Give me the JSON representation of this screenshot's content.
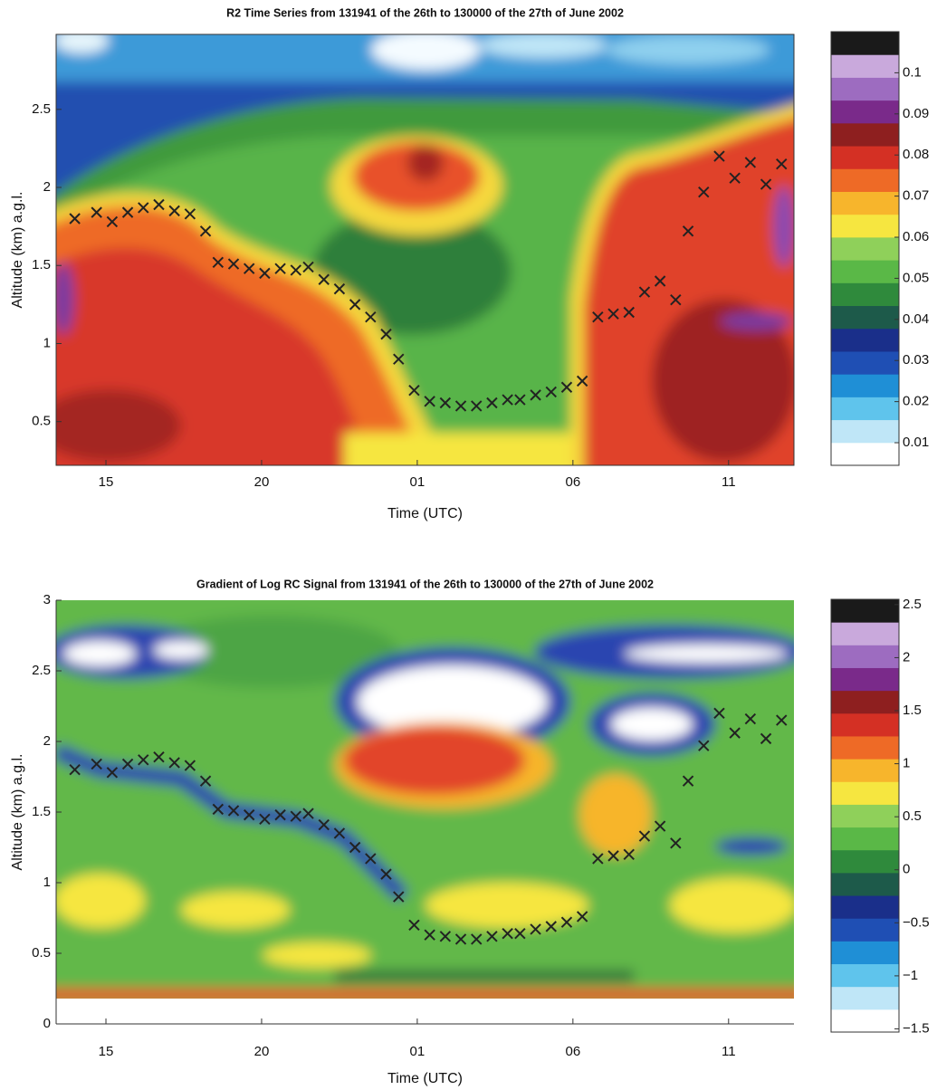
{
  "chart_data": [
    {
      "type": "heatmap",
      "title": "R2 Time Series from 131941 of the 26th to 130000 of the 27th of June 2002",
      "x_label": "Time (UTC)",
      "y_label": "Altitude (km) a.g.l.",
      "xlim": [
        13.4,
        37.1
      ],
      "xticks": [
        15,
        20,
        {
          "value": 25,
          "label": "01"
        },
        {
          "value": 30,
          "label": "06"
        },
        {
          "value": 35,
          "label": "11"
        }
      ],
      "ylim": [
        0.22,
        2.98
      ],
      "yticks": [
        0.5,
        1,
        1.5,
        2,
        2.5
      ],
      "colorbar": {
        "lim": [
          0.0045,
          0.11
        ],
        "ticks": [
          0.01,
          0.02,
          0.03,
          0.04,
          0.05,
          0.06,
          0.07,
          0.08,
          0.09,
          0.1
        ],
        "colors": [
          "#ffffff",
          "#bfe6f7",
          "#5fc4ec",
          "#1f8fd6",
          "#1f4fb4",
          "#1a2f8a",
          "#1d5a4a",
          "#2f8a3c",
          "#5ab847",
          "#8fd05a",
          "#f6e640",
          "#f7b52c",
          "#ee6a26",
          "#d43024",
          "#8e1f1f",
          "#7a2a8a",
          "#9d6cc0",
          "#c9a9dc",
          "#1a1a1a"
        ]
      },
      "markers": {
        "color": "#222222",
        "x": [
          14.0,
          14.7,
          15.2,
          15.7,
          16.2,
          16.7,
          17.2,
          17.7,
          18.2,
          18.6,
          19.1,
          19.6,
          20.1,
          20.6,
          21.1,
          21.5,
          22.0,
          22.5,
          23.0,
          23.5,
          24.0,
          24.4,
          24.9,
          25.4,
          25.9,
          26.4,
          26.9,
          27.4,
          27.9,
          28.3,
          28.8,
          29.3,
          29.8,
          30.3,
          30.8,
          31.3,
          31.8,
          32.3,
          32.8,
          33.3,
          33.7,
          34.2,
          34.7,
          35.2,
          35.7,
          36.2,
          36.7
        ],
        "values": [
          1.8,
          1.84,
          1.78,
          1.84,
          1.87,
          1.89,
          1.85,
          1.83,
          1.72,
          1.52,
          1.51,
          1.48,
          1.45,
          1.48,
          1.47,
          1.49,
          1.41,
          1.35,
          1.25,
          1.17,
          1.06,
          0.9,
          0.7,
          0.63,
          0.62,
          0.6,
          0.6,
          0.62,
          0.64,
          0.64,
          0.67,
          0.69,
          0.72,
          0.76,
          1.17,
          1.19,
          1.2,
          1.33,
          1.4,
          1.28,
          1.72,
          1.97,
          2.2,
          2.06,
          2.16,
          2.02,
          2.15
        ]
      }
    },
    {
      "type": "heatmap",
      "title": "Gradient of Log RC Signal from 131941 of the 26th to 130000 of the 27th of June 2002",
      "x_label": "Time (UTC)",
      "y_label": "Altitude (km) a.g.l.",
      "xlim": [
        13.4,
        37.1
      ],
      "xticks": [
        15,
        20,
        {
          "value": 25,
          "label": "01"
        },
        {
          "value": 30,
          "label": "06"
        },
        {
          "value": 35,
          "label": "11"
        }
      ],
      "ylim": [
        0,
        3
      ],
      "yticks": [
        0,
        0.5,
        1,
        1.5,
        2,
        2.5,
        3
      ],
      "colorbar": {
        "lim": [
          -1.53,
          2.55
        ],
        "ticks": [
          {
            "value": -1.5,
            "label": "−1.5"
          },
          {
            "value": -1,
            "label": "−1"
          },
          {
            "value": -0.5,
            "label": "−0.5"
          },
          0,
          0.5,
          1,
          1.5,
          2,
          2.5
        ],
        "colors": [
          "#ffffff",
          "#bfe6f7",
          "#5fc4ec",
          "#1f8fd6",
          "#1f4fb4",
          "#1a2f8a",
          "#1d5a4a",
          "#2f8a3c",
          "#5ab847",
          "#8fd05a",
          "#f6e640",
          "#f7b52c",
          "#ee6a26",
          "#d43024",
          "#8e1f1f",
          "#7a2a8a",
          "#9d6cc0",
          "#c9a9dc",
          "#1a1a1a"
        ]
      },
      "markers": {
        "color": "#222222",
        "x": [
          14.0,
          14.7,
          15.2,
          15.7,
          16.2,
          16.7,
          17.2,
          17.7,
          18.2,
          18.6,
          19.1,
          19.6,
          20.1,
          20.6,
          21.1,
          21.5,
          22.0,
          22.5,
          23.0,
          23.5,
          24.0,
          24.4,
          24.9,
          25.4,
          25.9,
          26.4,
          26.9,
          27.4,
          27.9,
          28.3,
          28.8,
          29.3,
          29.8,
          30.3,
          30.8,
          31.3,
          31.8,
          32.3,
          32.8,
          33.3,
          33.7,
          34.2,
          34.7,
          35.2,
          35.7,
          36.2,
          36.7
        ],
        "values": [
          1.8,
          1.84,
          1.78,
          1.84,
          1.87,
          1.89,
          1.85,
          1.83,
          1.72,
          1.52,
          1.51,
          1.48,
          1.45,
          1.48,
          1.47,
          1.49,
          1.41,
          1.35,
          1.25,
          1.17,
          1.06,
          0.9,
          0.7,
          0.63,
          0.62,
          0.6,
          0.6,
          0.62,
          0.64,
          0.64,
          0.67,
          0.69,
          0.72,
          0.76,
          1.17,
          1.19,
          1.2,
          1.33,
          1.4,
          1.28,
          1.72,
          1.97,
          2.2,
          2.06,
          2.16,
          2.02,
          2.15
        ]
      }
    }
  ]
}
